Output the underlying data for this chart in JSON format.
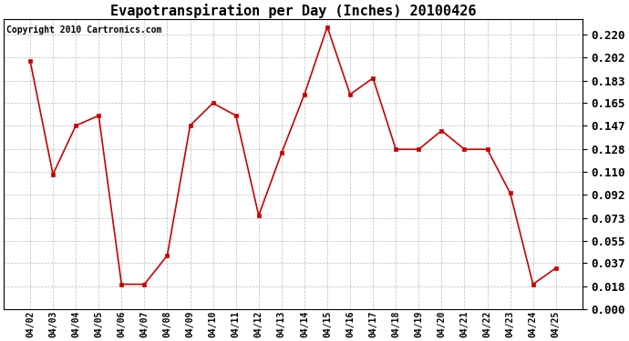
{
  "title": "Evapotranspiration per Day (Inches) 20100426",
  "copyright_text": "Copyright 2010 Cartronics.com",
  "dates": [
    "04/02",
    "04/03",
    "04/04",
    "04/05",
    "04/06",
    "04/07",
    "04/08",
    "04/09",
    "04/10",
    "04/11",
    "04/12",
    "04/13",
    "04/14",
    "04/15",
    "04/16",
    "04/17",
    "04/18",
    "04/19",
    "04/20",
    "04/21",
    "04/22",
    "04/23",
    "04/24",
    "04/25"
  ],
  "values": [
    0.199,
    0.108,
    0.147,
    0.155,
    0.02,
    0.02,
    0.043,
    0.147,
    0.165,
    0.155,
    0.075,
    0.125,
    0.172,
    0.226,
    0.172,
    0.185,
    0.128,
    0.128,
    0.143,
    0.128,
    0.128,
    0.093,
    0.02,
    0.033
  ],
  "line_color": "#cc0000",
  "marker": "s",
  "marker_size": 2.5,
  "line_width": 1.2,
  "ylim": [
    0.0,
    0.232
  ],
  "yticks": [
    0.0,
    0.018,
    0.037,
    0.055,
    0.073,
    0.092,
    0.11,
    0.128,
    0.147,
    0.165,
    0.183,
    0.202,
    0.22
  ],
  "background_color": "#ffffff",
  "grid_color": "#bbbbbb",
  "title_fontsize": 11,
  "copyright_fontsize": 7,
  "ytick_fontsize": 9,
  "xtick_fontsize": 7
}
